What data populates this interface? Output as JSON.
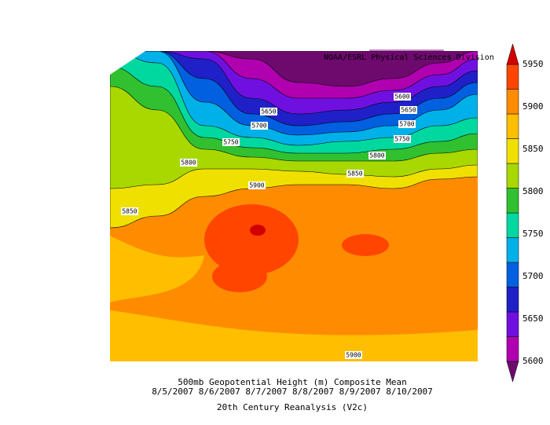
{
  "credit": "NOAA/ESRL Physical Sciences Division",
  "caption": [
    "500mb Geopotential Height (m) Composite Mean",
    "8/5/2007 8/6/2007 8/7/2007 8/8/2007 8/9/2007 8/10/2007",
    "20th Century Reanalysis (V2c)"
  ],
  "colorbar": {
    "labels": [
      5600,
      5650,
      5700,
      5750,
      5800,
      5850,
      5900,
      5950
    ],
    "colors": [
      "#6e0a6e",
      "#b000b0",
      "#7010e0",
      "#2020c8",
      "#0060e0",
      "#00b0e8",
      "#00d8a0",
      "#30c030",
      "#a8d800",
      "#f0e000",
      "#ffbf00",
      "#ff8c00",
      "#ff4500",
      "#d00000"
    ]
  },
  "contour_labels": [
    5600,
    5650,
    5650,
    5700,
    5700,
    5750,
    5750,
    5800,
    5800,
    5850,
    5850,
    5900,
    5900
  ]
}
